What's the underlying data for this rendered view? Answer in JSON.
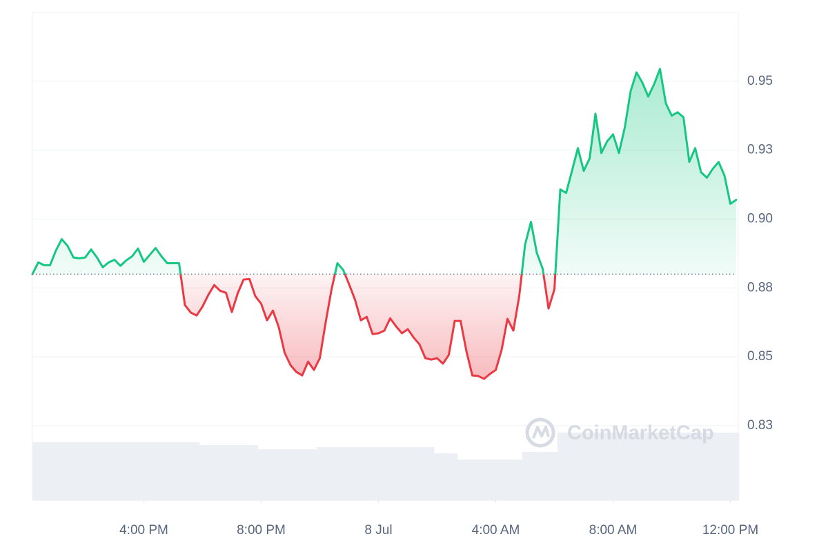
{
  "chart_data": {
    "type": "line",
    "watermark": "CoinMarketCap",
    "x": [
      12.2,
      12.4,
      12.6,
      12.8,
      13,
      13.2,
      13.4,
      13.6,
      13.8,
      14,
      14.2,
      14.4,
      14.6,
      14.8,
      15,
      15.2,
      15.4,
      15.6,
      15.8,
      16,
      16.2,
      16.4,
      16.6,
      16.8,
      17,
      17.2,
      17.4,
      17.6,
      17.8,
      18,
      18.2,
      18.4,
      18.6,
      18.8,
      19,
      19.2,
      19.4,
      19.6,
      19.8,
      20,
      20.2,
      20.4,
      20.6,
      20.8,
      21,
      21.2,
      21.4,
      21.6,
      21.8,
      22,
      22.2,
      22.4,
      22.6,
      22.8,
      23,
      23.2,
      23.4,
      23.6,
      23.8,
      24,
      24.2,
      24.4,
      24.6,
      24.8,
      25,
      25.2,
      25.4,
      25.6,
      25.8,
      26,
      26.2,
      26.4,
      26.6,
      26.8,
      27,
      27.2,
      27.4,
      27.6,
      27.8,
      28,
      28.2,
      28.4,
      28.6,
      28.8,
      29,
      29.2,
      29.4,
      29.6,
      29.8,
      30,
      30.2,
      30.4,
      30.6,
      30.8,
      31,
      31.2,
      31.4,
      31.6,
      31.8,
      32,
      32.2,
      32.4,
      32.6,
      32.8,
      33,
      33.2,
      33.4,
      33.6,
      33.8,
      34,
      34.2,
      34.4,
      34.6,
      34.8,
      35,
      35.2,
      35.4,
      35.6,
      35.8,
      36,
      36.2
    ],
    "values": [
      0.8828,
      0.8869,
      0.8859,
      0.8859,
      0.891,
      0.895,
      0.8926,
      0.8886,
      0.8883,
      0.8886,
      0.8914,
      0.8886,
      0.8852,
      0.8869,
      0.8878,
      0.8857,
      0.8876,
      0.889,
      0.8917,
      0.8871,
      0.8895,
      0.8919,
      0.889,
      0.8866,
      0.8866,
      0.8866,
      0.872,
      0.8694,
      0.8684,
      0.8715,
      0.8756,
      0.879,
      0.877,
      0.8763,
      0.8696,
      0.8761,
      0.8809,
      0.8811,
      0.8751,
      0.8725,
      0.8667,
      0.8701,
      0.8643,
      0.8554,
      0.8511,
      0.8487,
      0.8475,
      0.8523,
      0.8494,
      0.8535,
      0.866,
      0.8775,
      0.8866,
      0.8842,
      0.8792,
      0.8739,
      0.8667,
      0.8679,
      0.8619,
      0.8622,
      0.8631,
      0.8674,
      0.8646,
      0.8622,
      0.8636,
      0.8607,
      0.8583,
      0.8535,
      0.853,
      0.8535,
      0.8516,
      0.8547,
      0.8665,
      0.8665,
      0.8559,
      0.8475,
      0.8473,
      0.8463,
      0.848,
      0.8494,
      0.8564,
      0.8672,
      0.8631,
      0.8751,
      0.8931,
      0.901,
      0.8902,
      0.8847,
      0.8708,
      0.8775,
      0.9123,
      0.9111,
      0.9188,
      0.9267,
      0.9188,
      0.9231,
      0.9387,
      0.925,
      0.9291,
      0.9315,
      0.925,
      0.9339,
      0.9466,
      0.9531,
      0.9495,
      0.9447,
      0.949,
      0.9543,
      0.9423,
      0.938,
      0.9392,
      0.9375,
      0.9219,
      0.9267,
      0.9183,
      0.9164,
      0.9195,
      0.9219,
      0.9171,
      0.9073,
      0.9087
    ],
    "volume": [
      84,
      84,
      84,
      84,
      84,
      84,
      84,
      84,
      84,
      84,
      84,
      84,
      84,
      84,
      84,
      84,
      84,
      84,
      84,
      84,
      84,
      84,
      84,
      84,
      84,
      84,
      84,
      84,
      84,
      80,
      80,
      80,
      80,
      80,
      80,
      80,
      80,
      80,
      80,
      74,
      74,
      74,
      74,
      74,
      74,
      74,
      74,
      74,
      74,
      77,
      77,
      77,
      77,
      77,
      77,
      77,
      77,
      77,
      77,
      77,
      77,
      77,
      77,
      77,
      77,
      77,
      77,
      77,
      77,
      68,
      68,
      68,
      68,
      59,
      59,
      59,
      59,
      59,
      59,
      59,
      59,
      59,
      59,
      59,
      70,
      70,
      70,
      70,
      70,
      70,
      98,
      98,
      98,
      98,
      98,
      98,
      98,
      98,
      98,
      98,
      98,
      98,
      98,
      98,
      98,
      98,
      98,
      98,
      98,
      98,
      98,
      98,
      98,
      98,
      98,
      98,
      98,
      98,
      98,
      98,
      98
    ],
    "reference": 0.8828,
    "up_color": "#16c784",
    "down_color": "#ea3943",
    "volume_color": "#eceff3",
    "grid": true,
    "xlim": [
      12.2,
      36.2
    ],
    "ylim": [
      0.804,
      0.974
    ],
    "xticks": [
      {
        "value": 16,
        "label": "4:00 PM"
      },
      {
        "value": 20,
        "label": "8:00 PM"
      },
      {
        "value": 24,
        "label": "8 Jul"
      },
      {
        "value": 28,
        "label": "4:00 AM"
      },
      {
        "value": 32,
        "label": "8:00 AM"
      },
      {
        "value": 36,
        "label": "12:00 PM"
      }
    ],
    "yticks": [
      {
        "value": 0.83,
        "label": "0.83"
      },
      {
        "value": 0.854,
        "label": "0.85"
      },
      {
        "value": 0.878,
        "label": "0.88"
      },
      {
        "value": 0.902,
        "label": "0.90"
      },
      {
        "value": 0.926,
        "label": "0.93"
      },
      {
        "value": 0.95,
        "label": "0.95"
      }
    ]
  }
}
